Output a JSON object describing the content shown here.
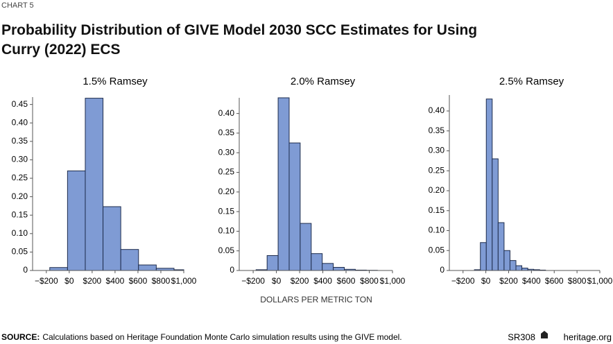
{
  "label": "CHART 5",
  "title": "Probability Distribution of GIVE Model 2030 SCC Estimates for Using Curry (2022) ECS",
  "axis_note": "DOLLARS PER METRIC TON",
  "source": {
    "label": "SOURCE:",
    "text": "Calculations based on Heritage Foundation Monte Carlo simulation results using the GIVE model."
  },
  "report": "SR308",
  "site": "heritage.org",
  "chart_data": [
    {
      "type": "histogram",
      "title": "1.5% Ramsey",
      "color": "#7f9bd4",
      "bins": [
        -170,
        -15,
        140,
        295,
        450,
        605,
        760,
        915,
        1000
      ],
      "values": [
        0.008,
        0.27,
        0.467,
        0.173,
        0.057,
        0.015,
        0.006,
        0.002
      ],
      "xlim": [
        -320,
        1000
      ],
      "ylim": [
        0,
        0.47
      ],
      "xticks": [
        {
          "value": -200,
          "label": "−$200"
        },
        {
          "value": 0,
          "label": "$0"
        },
        {
          "value": 200,
          "label": "$200"
        },
        {
          "value": 400,
          "label": "$400"
        },
        {
          "value": 600,
          "label": "$600"
        },
        {
          "value": 800,
          "label": "$800"
        },
        {
          "value": 1000,
          "label": "$1,000"
        }
      ],
      "yticks": [
        0,
        0.05,
        {
          "value": 0.1,
          "label": "0.10"
        },
        0.15,
        {
          "value": 0.2,
          "label": "0.20"
        },
        0.25,
        {
          "value": 0.3,
          "label": "0.30"
        },
        0.35,
        {
          "value": 0.4,
          "label": "0.40"
        },
        0.45
      ]
    },
    {
      "type": "histogram",
      "title": "2.0% Ramsey",
      "color": "#7f9bd4",
      "bins": [
        -175,
        -80,
        15,
        110,
        205,
        300,
        395,
        490,
        585,
        680,
        775,
        870
      ],
      "values": [
        0.002,
        0.038,
        0.44,
        0.325,
        0.12,
        0.043,
        0.018,
        0.008,
        0.003,
        0.001,
        0.0005
      ],
      "xlim": [
        -320,
        1000
      ],
      "ylim": [
        0,
        0.44
      ],
      "xticks": [
        {
          "value": -200,
          "label": "−$200"
        },
        {
          "value": 0,
          "label": "$0"
        },
        {
          "value": 200,
          "label": "$200"
        },
        {
          "value": 400,
          "label": "$400"
        },
        {
          "value": 600,
          "label": "$600"
        },
        {
          "value": 800,
          "label": "$800"
        },
        {
          "value": 1000,
          "label": "$1,000"
        }
      ],
      "yticks": [
        0,
        0.05,
        {
          "value": 0.1,
          "label": "0.10"
        },
        0.15,
        {
          "value": 0.2,
          "label": "0.20"
        },
        0.25,
        {
          "value": 0.3,
          "label": "0.30"
        },
        0.35,
        {
          "value": 0.4,
          "label": "0.40"
        }
      ]
    },
    {
      "type": "histogram",
      "title": "2.5% Ramsey",
      "color": "#7f9bd4",
      "bins": [
        -100,
        -48,
        4,
        56,
        108,
        160,
        212,
        264,
        316,
        368,
        420,
        472,
        524
      ],
      "values": [
        0.002,
        0.07,
        0.43,
        0.28,
        0.12,
        0.05,
        0.025,
        0.012,
        0.006,
        0.003,
        0.002,
        0.001
      ],
      "xlim": [
        -320,
        1000
      ],
      "ylim": [
        0,
        0.44
      ],
      "xticks": [
        {
          "value": -200,
          "label": "−$200"
        },
        {
          "value": 0,
          "label": "$0"
        },
        {
          "value": 200,
          "label": "$200"
        },
        {
          "value": 400,
          "label": "$400"
        },
        {
          "value": 600,
          "label": "$600"
        },
        {
          "value": 800,
          "label": "$800"
        },
        {
          "value": 1000,
          "label": "$1,000"
        }
      ],
      "yticks": [
        0,
        0.05,
        {
          "value": 0.1,
          "label": "0.10"
        },
        0.15,
        {
          "value": 0.2,
          "label": "0.20"
        },
        0.25,
        {
          "value": 0.3,
          "label": "0.30"
        },
        0.35,
        {
          "value": 0.4,
          "label": "0.40"
        }
      ]
    }
  ]
}
